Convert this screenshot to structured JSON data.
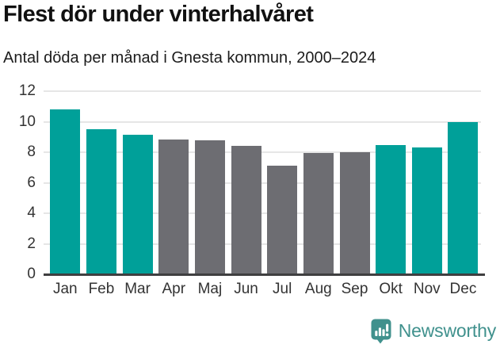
{
  "header": {
    "title": "Flest dör under vinterhalvåret",
    "subtitle": "Antal döda per månad i Gnesta kommun, 2000–2024"
  },
  "chart_data": {
    "type": "bar",
    "title": "Flest dör under vinterhalvåret",
    "subtitle": "Antal döda per månad i Gnesta kommun, 2000–2024",
    "categories": [
      "Jan",
      "Feb",
      "Mar",
      "Apr",
      "Maj",
      "Jun",
      "Jul",
      "Aug",
      "Sep",
      "Okt",
      "Nov",
      "Dec"
    ],
    "values": [
      10.8,
      9.5,
      9.15,
      8.85,
      8.8,
      8.4,
      7.1,
      7.95,
      8.0,
      8.45,
      8.3,
      10.0
    ],
    "point_colors": [
      "#00a099",
      "#00a099",
      "#00a099",
      "#6d6d72",
      "#6d6d72",
      "#6d6d72",
      "#6d6d72",
      "#6d6d72",
      "#6d6d72",
      "#00a099",
      "#00a099",
      "#00a099"
    ],
    "highlight_color": "#00a099",
    "base_color": "#6d6d72",
    "grid_color": "#e6e6e6",
    "axis_color": "#3f3f40",
    "yticks": [
      0,
      2,
      4,
      6,
      8,
      10,
      12
    ],
    "ylim": [
      0,
      12
    ],
    "grid": true,
    "legend": false,
    "xlabel": "",
    "ylabel": ""
  },
  "footer": {
    "brand": "Newsworthy",
    "brand_color": "#40918d",
    "logo_icon": "newsworthy-bar-chart-bubble-icon"
  }
}
